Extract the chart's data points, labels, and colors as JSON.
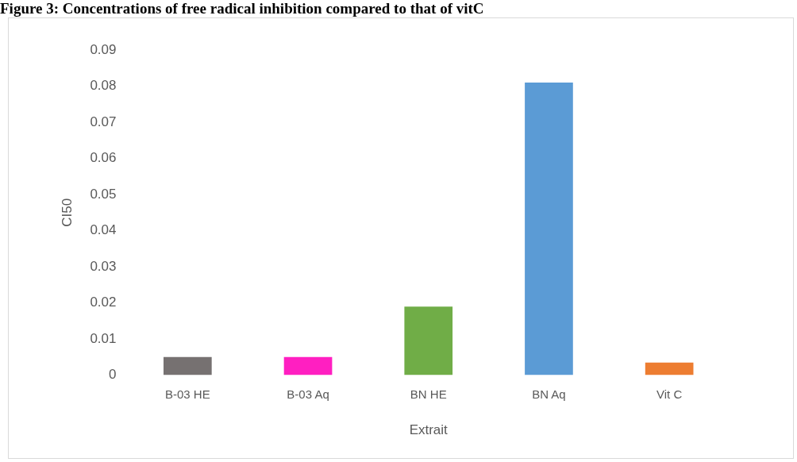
{
  "chart_data": {
    "type": "bar",
    "title": "Figure 3: Concentrations of free radical inhibition compared to that of vitC",
    "xlabel": "Extrait",
    "ylabel": "CI50",
    "categories": [
      "B-03 HE",
      "B-03 Aq",
      "BN HE",
      "BN Aq",
      "Vit C"
    ],
    "values": [
      0.005,
      0.005,
      0.019,
      0.081,
      0.0035
    ],
    "colors": [
      "#767171",
      "#ff1fc1",
      "#70ad47",
      "#5b9bd5",
      "#ed7d31"
    ],
    "ylim": [
      0,
      0.09
    ],
    "yticks": [
      0,
      0.01,
      0.02,
      0.03,
      0.04,
      0.05,
      0.06,
      0.07,
      0.08,
      0.09
    ],
    "grid": false,
    "legend": false
  }
}
